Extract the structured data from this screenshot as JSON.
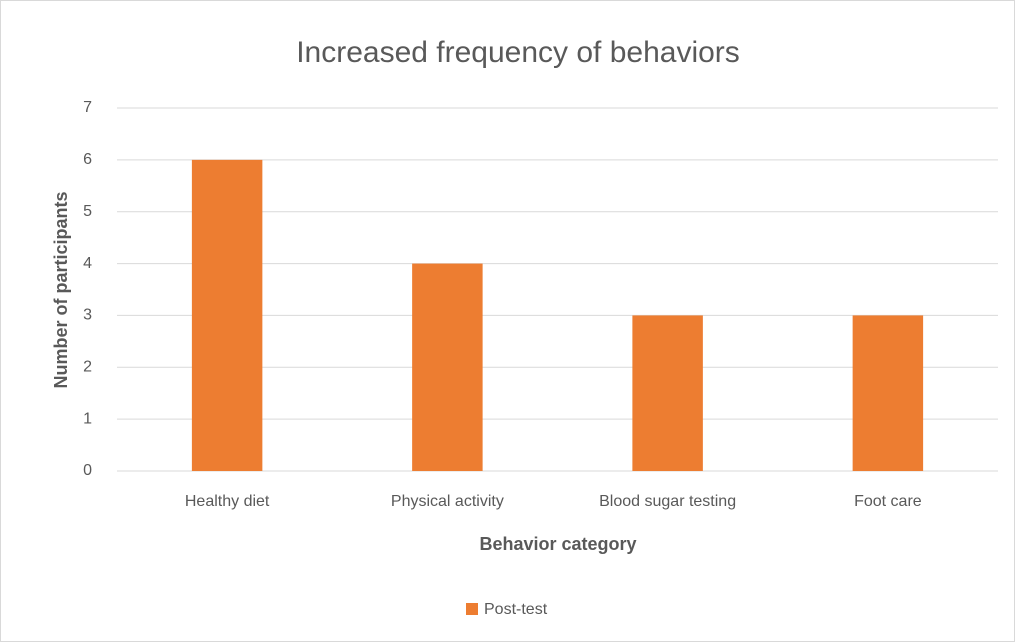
{
  "chart_data": {
    "type": "bar",
    "title": "Increased frequency of behaviors",
    "x_label": "Behavior category",
    "y_label": "Number of participants",
    "categories": [
      "Healthy diet",
      "Physical activity",
      "Blood sugar testing",
      "Foot care"
    ],
    "series": [
      {
        "name": "Post-test",
        "color": "#ed7d31",
        "values": [
          6,
          4,
          3,
          3
        ]
      }
    ],
    "ylim": [
      0,
      7
    ],
    "yticks": [
      0,
      1,
      2,
      3,
      4,
      5,
      6,
      7
    ],
    "grid": true,
    "legend": "bottom"
  }
}
